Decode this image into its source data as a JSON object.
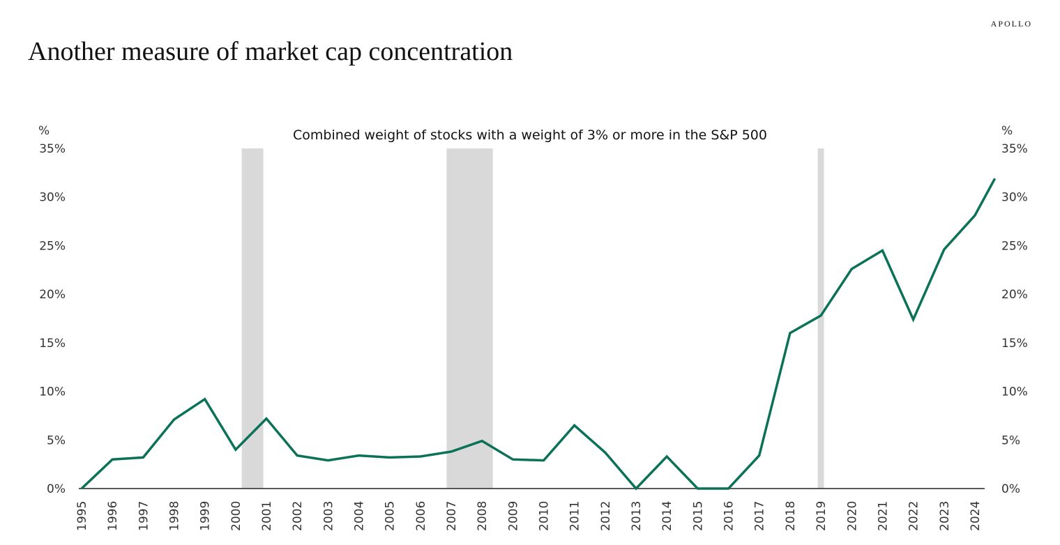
{
  "header": {
    "title": "Another measure of market cap concentration",
    "logo": "APOLLO"
  },
  "chart_data": {
    "type": "line",
    "title": "Combined weight of stocks with a weight of 3% or more in the S&P 500",
    "ylabel_left": "%",
    "ylabel_right": "%",
    "xlabel": "",
    "ylim": [
      0,
      35
    ],
    "yticks": [
      "0%",
      "5%",
      "10%",
      "15%",
      "20%",
      "25%",
      "30%",
      "35%"
    ],
    "ytick_values": [
      0,
      5,
      10,
      15,
      20,
      25,
      30,
      35
    ],
    "xticks": [
      "1995",
      "1996",
      "1997",
      "1998",
      "1999",
      "2000",
      "2001",
      "2002",
      "2003",
      "2004",
      "2005",
      "2006",
      "2007",
      "2008",
      "2009",
      "2010",
      "2011",
      "2012",
      "2013",
      "2014",
      "2015",
      "2016",
      "2017",
      "2018",
      "2019",
      "2020",
      "2021",
      "2022",
      "2023",
      "2024"
    ],
    "xlim": [
      1995,
      2024.65
    ],
    "grid": false,
    "series": [
      {
        "name": "Combined weight",
        "color": "#0b7157",
        "x": [
          1995,
          1996,
          1997,
          1998,
          1999,
          2000,
          2001,
          2002,
          2003,
          2004,
          2005,
          2006,
          2007,
          2008,
          2009,
          2010,
          2011,
          2012,
          2013,
          2014,
          2015,
          2016,
          2017,
          2018,
          2019,
          2020,
          2021,
          2022,
          2023,
          2024,
          2024.65
        ],
        "values": [
          0,
          3.0,
          3.2,
          7.1,
          9.2,
          4.0,
          7.2,
          3.4,
          2.9,
          3.4,
          3.2,
          3.3,
          3.8,
          4.9,
          3.0,
          2.9,
          6.5,
          3.7,
          0,
          3.3,
          0,
          0,
          3.4,
          16.0,
          17.8,
          22.6,
          24.5,
          17.4,
          24.6,
          28.1,
          31.9
        ]
      }
    ],
    "shaded_periods": [
      [
        2000.2,
        2000.9
      ],
      [
        2006.85,
        2008.35
      ],
      [
        2018.9,
        2019.1
      ]
    ],
    "shade_color": "#d9d9d9"
  }
}
